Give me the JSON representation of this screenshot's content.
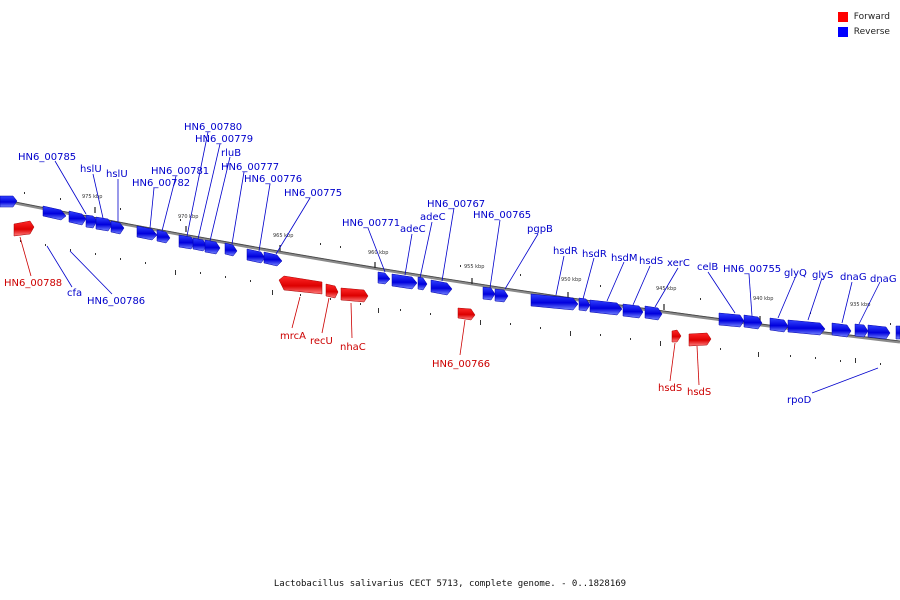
{
  "legend": {
    "forward_label": "Forward",
    "reverse_label": "Reverse",
    "forward_color": "#ff0000",
    "reverse_color": "#0000ff"
  },
  "caption": "Lactobacillus salivarius CECT 5713, complete genome. - 0..1828169",
  "diagram": {
    "tick_labels": [
      "975 kbp",
      "970 kbp",
      "965 kbp",
      "960 kbp",
      "955 kbp",
      "950 kbp",
      "945 kbp",
      "940 kbp",
      "935 kbp"
    ],
    "reverse_genes": [
      "HN6_00785",
      "hslU",
      "hslU",
      "HN6_00782",
      "HN6_00781",
      "HN6_00780",
      "HN6_00779",
      "rluB",
      "HN6_00777",
      "HN6_00776",
      "HN6_00775",
      "HN6_00771",
      "adeC",
      "adeC",
      "HN6_00767",
      "HN6_00765",
      "pgpB",
      "hsdR",
      "hsdR",
      "hsdM",
      "hsdS",
      "xerC",
      "celB",
      "HN6_00755",
      "glyQ",
      "glyS",
      "dnaG",
      "dnaG",
      "cfa",
      "HN6_00786",
      "rpoD"
    ],
    "forward_genes": [
      "HN6_00788",
      "mrcA",
      "recU",
      "nhaC",
      "HN6_00766",
      "hsdS",
      "hsdS"
    ]
  }
}
